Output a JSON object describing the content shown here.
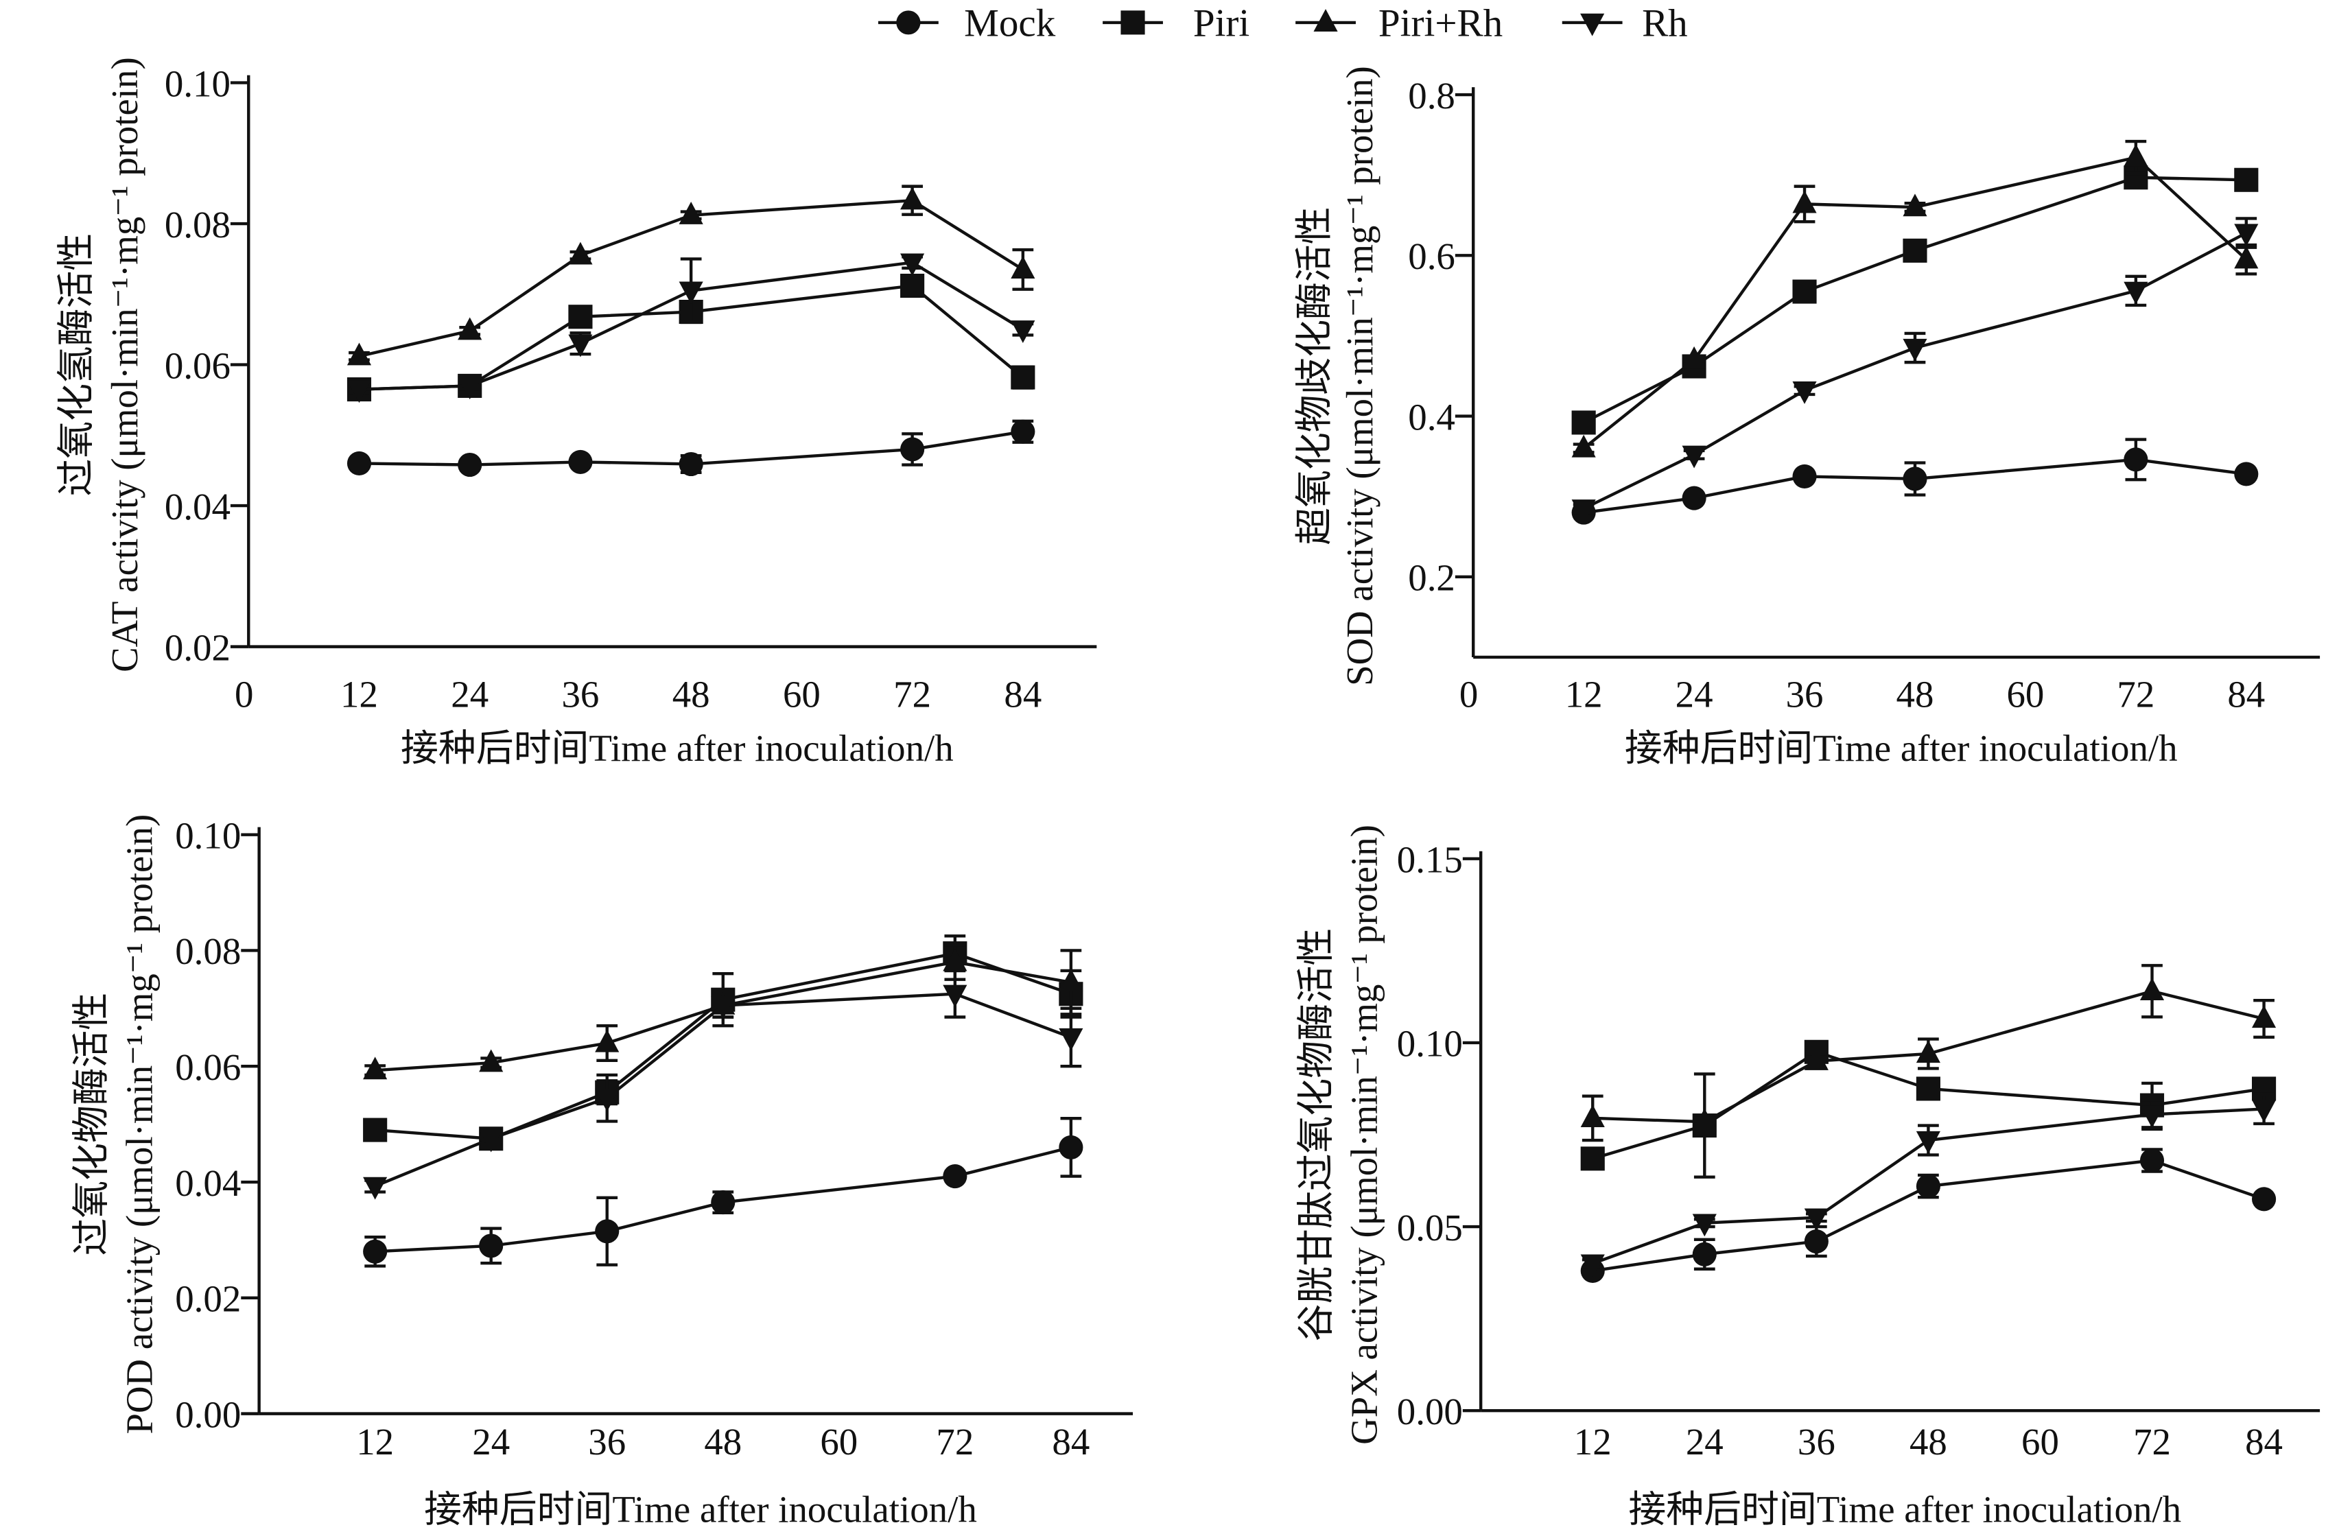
{
  "legend": [
    {
      "name": "Mock",
      "marker": "circle"
    },
    {
      "name": "Piri",
      "marker": "square"
    },
    {
      "name": "Piri+Rh",
      "marker": "triangle-up"
    },
    {
      "name": "Rh",
      "marker": "triangle-down"
    }
  ],
  "colors": {
    "ink": "#111111",
    "background": "#ffffff"
  },
  "chart_data": [
    {
      "id": "cat",
      "type": "line",
      "ylabel_cn": "过氧化氢酶活性",
      "ylabel": "CAT activity (μmol·min⁻¹·mg⁻¹ protein)",
      "xlabel": "接种后时间Time after inoculation/h",
      "x": [
        12,
        24,
        36,
        48,
        72,
        84
      ],
      "xticks": [
        0,
        12,
        24,
        36,
        48,
        60,
        72,
        84
      ],
      "yticks": [
        "0.02",
        "0.04",
        "0.06",
        "0.08",
        "0.10"
      ],
      "xlim": [
        0,
        92
      ],
      "ylim": [
        0.02,
        0.1
      ],
      "series": [
        {
          "name": "Mock",
          "values": [
            0.046,
            0.0458,
            0.0462,
            0.0459,
            0.048,
            0.0505
          ],
          "err": [
            0.0005,
            0.0005,
            0.0005,
            0.0012,
            0.0022,
            0.0015
          ]
        },
        {
          "name": "Piri",
          "values": [
            0.0565,
            0.057,
            0.0668,
            0.0675,
            0.0712,
            0.0582
          ],
          "err": [
            0.001,
            0.0008,
            0.0008,
            0.001,
            0.001,
            0.0015
          ]
        },
        {
          "name": "Piri+Rh",
          "values": [
            0.0612,
            0.0648,
            0.0755,
            0.0812,
            0.0833,
            0.0735
          ],
          "err": [
            0.0005,
            0.0005,
            0.0005,
            0.0005,
            0.002,
            0.0028
          ]
        },
        {
          "name": "Rh",
          "values": [
            0.0565,
            0.057,
            0.063,
            0.0705,
            0.0745,
            0.065
          ],
          "err": [
            0.0005,
            0.0005,
            0.0015,
            0.0045,
            0.0008,
            0.0008
          ]
        }
      ]
    },
    {
      "id": "sod",
      "type": "line",
      "ylabel_cn": "超氧化物歧化酶活性",
      "ylabel": "SOD activity (μmol·min⁻¹·mg⁻¹ protein)",
      "xlabel": "接种后时间Time after inoculation/h",
      "x": [
        12,
        24,
        36,
        48,
        72,
        84
      ],
      "xticks": [
        0,
        12,
        24,
        36,
        48,
        60,
        72,
        84
      ],
      "yticks": [
        "0.2",
        "0.4",
        "0.6",
        "0.8"
      ],
      "xlim": [
        0,
        92
      ],
      "ylim": [
        0.1,
        0.8
      ],
      "series": [
        {
          "name": "Mock",
          "values": [
            0.28,
            0.298,
            0.325,
            0.322,
            0.346,
            0.328
          ],
          "err": [
            0.005,
            0.004,
            0.005,
            0.02,
            0.025,
            0.004
          ]
        },
        {
          "name": "Piri",
          "values": [
            0.392,
            0.462,
            0.555,
            0.606,
            0.697,
            0.694
          ],
          "err": [
            0.005,
            0.005,
            0.005,
            0.005,
            0.012,
            0.005
          ]
        },
        {
          "name": "Piri+Rh",
          "values": [
            0.36,
            0.47,
            0.664,
            0.66,
            0.722,
            0.595
          ],
          "err": [
            0.005,
            0.005,
            0.022,
            0.005,
            0.02,
            0.018
          ]
        },
        {
          "name": "Rh",
          "values": [
            0.285,
            0.352,
            0.432,
            0.485,
            0.556,
            0.628
          ],
          "err": [
            0.005,
            0.005,
            0.005,
            0.018,
            0.018,
            0.018
          ]
        }
      ]
    },
    {
      "id": "pod",
      "type": "line",
      "ylabel_cn": "过氧化物酶活性",
      "ylabel": "POD activity (μmol·min⁻¹·mg⁻¹ protein)",
      "xlabel": "接种后时间Time after inoculation/h",
      "x": [
        12,
        24,
        36,
        48,
        72,
        84
      ],
      "xticks": [
        12,
        24,
        36,
        48,
        60,
        72,
        84
      ],
      "yticks": [
        "0.00",
        "0.02",
        "0.04",
        "0.06",
        "0.08",
        "0.10"
      ],
      "xlim": [
        0,
        90.4
      ],
      "ylim": [
        0,
        0.1
      ],
      "series": [
        {
          "name": "Mock",
          "values": [
            0.028,
            0.029,
            0.0315,
            0.0365,
            0.041,
            0.046
          ],
          "err": [
            0.0025,
            0.003,
            0.0058,
            0.0018,
            0.0008,
            0.005
          ]
        },
        {
          "name": "Piri",
          "values": [
            0.049,
            0.0475,
            0.0555,
            0.0715,
            0.0795,
            0.0725
          ],
          "err": [
            0.001,
            0.001,
            0.002,
            0.0045,
            0.003,
            0.004
          ]
        },
        {
          "name": "Piri+Rh",
          "values": [
            0.0593,
            0.0606,
            0.064,
            0.0705,
            0.078,
            0.0745
          ],
          "err": [
            0.0008,
            0.0008,
            0.003,
            0.002,
            0.003,
            0.0055
          ]
        },
        {
          "name": "Rh",
          "values": [
            0.0393,
            0.0475,
            0.0545,
            0.0705,
            0.0725,
            0.065
          ],
          "err": [
            0.001,
            0.001,
            0.004,
            0.002,
            0.004,
            0.005
          ]
        }
      ]
    },
    {
      "id": "gpx",
      "type": "line",
      "ylabel_cn": "谷胱甘肽过氧化物酶活性",
      "ylabel": "GPX activity (μmol·min⁻¹·mg⁻¹ protein)",
      "xlabel": "接种后时间Time after inoculation/h",
      "x": [
        12,
        24,
        36,
        48,
        72,
        84
      ],
      "xticks": [
        12,
        24,
        36,
        48,
        60,
        72,
        84
      ],
      "yticks": [
        "0.00",
        "0.05",
        "0.10",
        "0.15"
      ],
      "xlim": [
        0,
        90
      ],
      "ylim": [
        0,
        0.15
      ],
      "series": [
        {
          "name": "Mock",
          "values": [
            0.038,
            0.0425,
            0.046,
            0.061,
            0.068,
            0.0575
          ],
          "err": [
            0.001,
            0.004,
            0.004,
            0.003,
            0.003,
            0.001
          ]
        },
        {
          "name": "Piri",
          "values": [
            0.0685,
            0.0775,
            0.0975,
            0.0875,
            0.083,
            0.0875
          ],
          "err": [
            0.001,
            0.014,
            0.002,
            0.002,
            0.006,
            0.002
          ]
        },
        {
          "name": "Piri+Rh",
          "values": [
            0.0795,
            0.0785,
            0.095,
            0.097,
            0.114,
            0.1065
          ],
          "err": [
            0.006,
            0.001,
            0.002,
            0.004,
            0.007,
            0.005
          ]
        },
        {
          "name": "Rh",
          "values": [
            0.04,
            0.051,
            0.0525,
            0.0735,
            0.0805,
            0.082
          ],
          "err": [
            0.001,
            0.001,
            0.001,
            0.004,
            0.004,
            0.004
          ]
        }
      ]
    }
  ]
}
